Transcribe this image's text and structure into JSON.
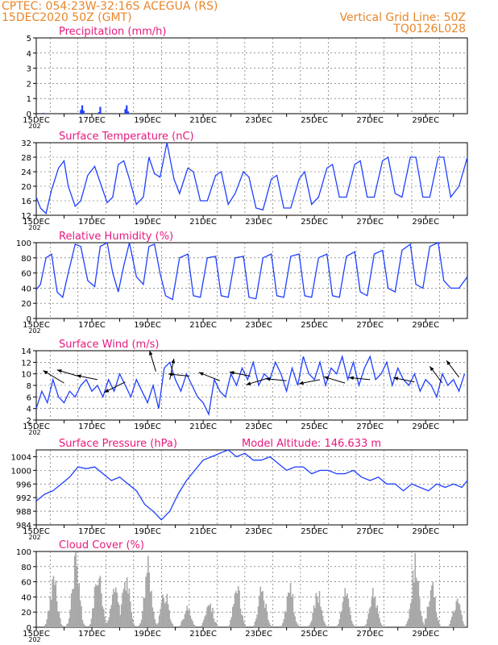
{
  "header": {
    "line1": "CPTEC:   054:23W-32:16S   ACEGUA (RS)",
    "line2": "15DEC2020 50Z (GMT)",
    "right1": "Vertical Grid Line: 50Z",
    "right2": "TQ0126L028"
  },
  "colors": {
    "header": "#e8862a",
    "title": "#e6197d",
    "line": "#1f3fff",
    "bar": "#a8a8a8"
  },
  "x_labels": [
    "15DEC",
    "17DEC",
    "19DEC",
    "21DEC",
    "23DEC",
    "25DEC",
    "27DEC",
    "29DEC"
  ],
  "x_label_stub": "202",
  "chart_data": [
    {
      "type": "bar",
      "title": "Precipitation (mm/h)",
      "ylim": [
        0,
        5
      ],
      "yticks": [
        0,
        1,
        2,
        3,
        4,
        5
      ],
      "x_unit": "days since 15DEC",
      "x": [
        0.25,
        1.6,
        1.65,
        1.7,
        2.25,
        2.3,
        3.2,
        3.25,
        3.3
      ],
      "values": [
        0.05,
        0.25,
        0.55,
        0.2,
        0.1,
        0.45,
        0.3,
        0.55,
        0.15
      ]
    },
    {
      "type": "line",
      "title": "Surface Temperature (nC)",
      "ylim": [
        12,
        32
      ],
      "yticks": [
        12,
        16,
        20,
        24,
        28,
        32
      ],
      "x": [
        0,
        0.15,
        0.35,
        0.55,
        0.8,
        1.0,
        1.15,
        1.4,
        1.6,
        1.85,
        2.1,
        2.3,
        2.55,
        2.75,
        2.95,
        3.15,
        3.35,
        3.6,
        3.85,
        4.05,
        4.25,
        4.45,
        4.7,
        4.95,
        5.15,
        5.45,
        5.65,
        5.9,
        6.15,
        6.45,
        6.65,
        6.9,
        7.15,
        7.45,
        7.65,
        7.9,
        8.15,
        8.45,
        8.65,
        8.9,
        9.15,
        9.45,
        9.65,
        9.9,
        10.15,
        10.45,
        10.65,
        10.9,
        11.15,
        11.45,
        11.65,
        11.9,
        12.15,
        12.45,
        12.65,
        12.9,
        13.15,
        13.45,
        13.65,
        13.9,
        14.15,
        14.45,
        14.65,
        14.9,
        15.2,
        15.5
      ],
      "values": [
        17,
        14,
        12.5,
        19,
        25,
        27,
        20,
        14.5,
        16,
        23,
        25.5,
        21,
        15.5,
        17,
        26,
        27,
        22,
        15,
        17,
        28,
        23.5,
        22.5,
        32,
        22,
        18,
        25,
        24,
        16,
        16,
        23,
        24,
        15,
        18,
        24,
        22.5,
        14,
        13.5,
        22,
        23,
        14,
        14,
        22,
        24,
        15,
        17,
        25,
        26,
        17,
        17,
        26,
        27,
        17,
        17,
        27,
        28,
        18,
        17,
        28,
        28,
        17,
        17,
        28,
        28,
        17,
        20,
        28
      ]
    },
    {
      "type": "line",
      "title": "Relative Humidity (%)",
      "ylim": [
        0,
        100
      ],
      "yticks": [
        0,
        20,
        40,
        60,
        80,
        100
      ],
      "x": [
        0,
        0.15,
        0.35,
        0.55,
        0.75,
        0.95,
        1.15,
        1.4,
        1.6,
        1.85,
        2.1,
        2.3,
        2.55,
        2.75,
        2.95,
        3.15,
        3.35,
        3.6,
        3.85,
        4.05,
        4.25,
        4.45,
        4.65,
        4.9,
        5.15,
        5.45,
        5.65,
        5.9,
        6.15,
        6.45,
        6.65,
        6.9,
        7.15,
        7.45,
        7.65,
        7.9,
        8.15,
        8.45,
        8.65,
        8.9,
        9.15,
        9.45,
        9.65,
        9.9,
        10.15,
        10.45,
        10.65,
        10.9,
        11.15,
        11.45,
        11.65,
        11.9,
        12.15,
        12.45,
        12.65,
        12.9,
        13.15,
        13.45,
        13.65,
        13.9,
        14.15,
        14.45,
        14.65,
        14.9,
        15.2,
        15.5
      ],
      "values": [
        38,
        45,
        80,
        85,
        35,
        28,
        60,
        98,
        95,
        50,
        42,
        95,
        100,
        60,
        35,
        70,
        100,
        55,
        45,
        95,
        98,
        60,
        30,
        25,
        80,
        85,
        30,
        28,
        80,
        82,
        30,
        28,
        80,
        82,
        28,
        26,
        80,
        85,
        30,
        28,
        82,
        85,
        30,
        28,
        80,
        85,
        30,
        28,
        82,
        88,
        35,
        30,
        85,
        90,
        40,
        35,
        90,
        98,
        45,
        40,
        95,
        100,
        50,
        40,
        40,
        55
      ]
    },
    {
      "type": "line",
      "title": "Surface Wind (m/s)",
      "ylim": [
        2,
        14
      ],
      "yticks": [
        2,
        4,
        6,
        8,
        10,
        12,
        14
      ],
      "x": [
        0,
        0.2,
        0.4,
        0.6,
        0.8,
        1.0,
        1.2,
        1.4,
        1.6,
        1.8,
        2.0,
        2.2,
        2.4,
        2.6,
        2.8,
        3.0,
        3.2,
        3.4,
        3.6,
        3.8,
        4.0,
        4.2,
        4.4,
        4.6,
        4.8,
        5.0,
        5.2,
        5.4,
        5.6,
        5.8,
        6.0,
        6.2,
        6.4,
        6.6,
        6.8,
        7.0,
        7.2,
        7.4,
        7.6,
        7.8,
        8.0,
        8.2,
        8.4,
        8.6,
        8.8,
        9.0,
        9.2,
        9.4,
        9.6,
        9.8,
        10.0,
        10.2,
        10.4,
        10.6,
        10.8,
        11.0,
        11.2,
        11.4,
        11.6,
        11.8,
        12.0,
        12.2,
        12.4,
        12.6,
        12.8,
        13.0,
        13.2,
        13.4,
        13.6,
        13.8,
        14.0,
        14.2,
        14.4,
        14.6,
        14.8,
        15.0,
        15.2,
        15.4
      ],
      "values": [
        4,
        7,
        5,
        9,
        6,
        5,
        7,
        6,
        8,
        9,
        7,
        8,
        6,
        9,
        7,
        10,
        8,
        6,
        9,
        7,
        5,
        8,
        4,
        11,
        12,
        9,
        7,
        10,
        8,
        6,
        5,
        3,
        9,
        7,
        6,
        10,
        8,
        11,
        9,
        12,
        8,
        10,
        9,
        12,
        10,
        7,
        11,
        8,
        13,
        10,
        9,
        12,
        8,
        11,
        10,
        13,
        9,
        12,
        8,
        11,
        13,
        9,
        10,
        12,
        8,
        11,
        9,
        8,
        10,
        7,
        9,
        8,
        6,
        10,
        8,
        9,
        7,
        10
      ]
    },
    {
      "type": "line",
      "title": "Surface Pressure (hPa)",
      "annotation": "Model Altitude: 146.633 m",
      "ylim": [
        984,
        1006
      ],
      "yticks": [
        984,
        988,
        992,
        996,
        1000,
        1004
      ],
      "x": [
        0,
        0.3,
        0.6,
        0.9,
        1.2,
        1.5,
        1.8,
        2.1,
        2.4,
        2.7,
        3.0,
        3.3,
        3.6,
        3.9,
        4.2,
        4.5,
        4.8,
        5.1,
        5.4,
        5.7,
        6.0,
        6.3,
        6.6,
        6.9,
        7.2,
        7.5,
        7.8,
        8.1,
        8.4,
        8.7,
        9.0,
        9.3,
        9.6,
        9.9,
        10.2,
        10.5,
        10.8,
        11.1,
        11.4,
        11.7,
        12.0,
        12.3,
        12.6,
        12.9,
        13.2,
        13.5,
        13.8,
        14.1,
        14.4,
        14.7,
        15.0,
        15.3,
        15.5
      ],
      "values": [
        991,
        993,
        994,
        996,
        998,
        1001,
        1000.5,
        1001,
        999,
        997,
        998,
        996,
        994,
        990,
        988,
        985.5,
        988,
        993,
        997,
        1000,
        1003,
        1004,
        1005,
        1006,
        1004,
        1005,
        1003,
        1003,
        1004,
        1002,
        1000,
        1001,
        1001,
        999,
        1000,
        1000,
        999,
        999,
        1000,
        998,
        997,
        998,
        996,
        996,
        994,
        996,
        995,
        994,
        996,
        995,
        996,
        995,
        997
      ]
    },
    {
      "type": "bar",
      "title": "Cloud Cover (%)",
      "ylim": [
        0,
        100
      ],
      "yticks": [
        0,
        20,
        40,
        60,
        80,
        100
      ]
    }
  ]
}
